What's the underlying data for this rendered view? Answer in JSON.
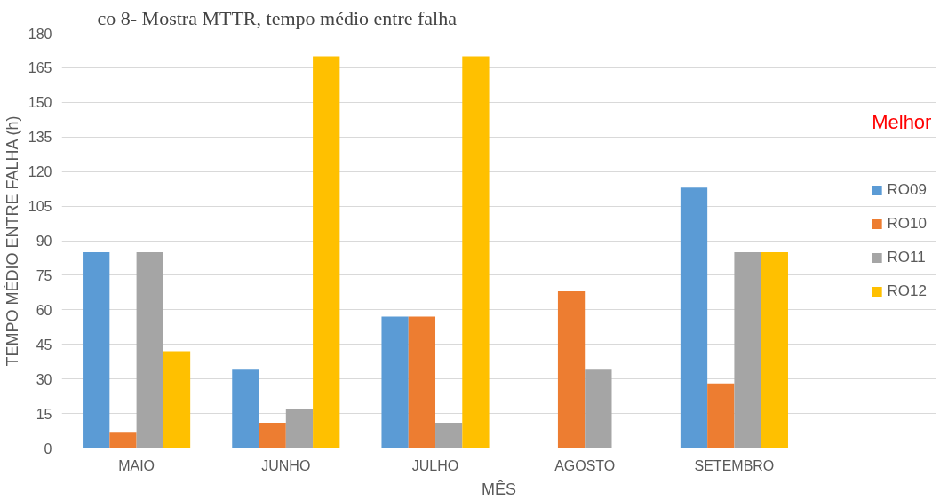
{
  "chart_data": {
    "type": "bar",
    "title": "co 8- Mostra MTTR, tempo médio entre falha",
    "xlabel": "MÊS",
    "ylabel": "TEMPO MÉDIO ENTRE FALHA (h)",
    "categories": [
      "MAIO",
      "JUNHO",
      "JULHO",
      "AGOSTO",
      "SETEMBRO"
    ],
    "series": [
      {
        "name": "RO09",
        "color": "#5b9bd5",
        "values": [
          85,
          34,
          57,
          0,
          113
        ]
      },
      {
        "name": "RO10",
        "color": "#ed7d31",
        "values": [
          7,
          11,
          57,
          68,
          28
        ]
      },
      {
        "name": "RO11",
        "color": "#a5a5a5",
        "values": [
          85,
          17,
          11,
          34,
          85
        ]
      },
      {
        "name": "RO12",
        "color": "#ffc000",
        "values": [
          42,
          170,
          170,
          0,
          85
        ]
      }
    ],
    "ylim": [
      0,
      180
    ],
    "yticks": [
      0,
      15,
      30,
      45,
      60,
      75,
      90,
      105,
      120,
      135,
      150,
      165,
      180
    ],
    "grid": "y",
    "legend": "right",
    "annotations": [
      "Melhor"
    ]
  }
}
